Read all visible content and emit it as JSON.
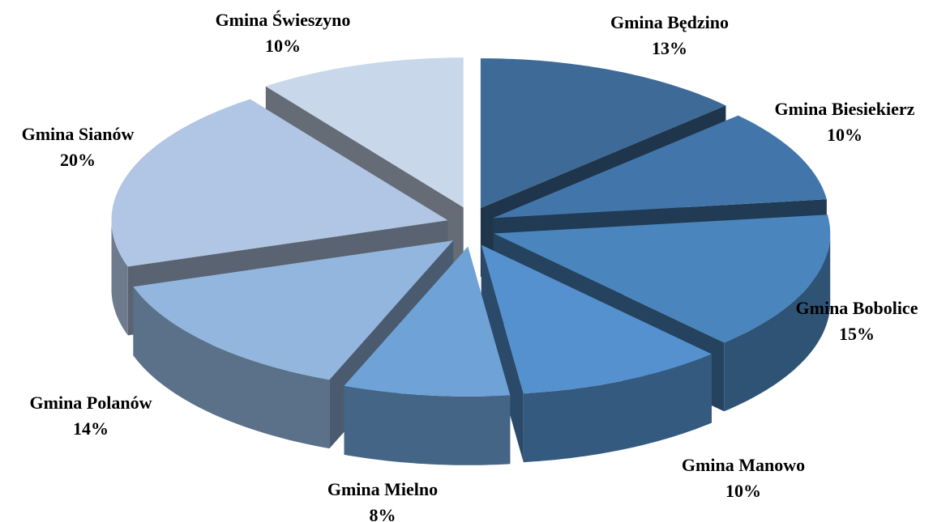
{
  "chart_data": {
    "type": "pie3d",
    "categories": [
      "Gmina Będzino",
      "Gmina Biesiekierz",
      "Gmina Bobolice",
      "Gmina Manowo",
      "Gmina Mielno",
      "Gmina Polanów",
      "Gmina Sianów",
      "Gmina Świeszyno"
    ],
    "values": [
      13,
      10,
      15,
      10,
      8,
      14,
      20,
      10
    ],
    "value_labels": [
      "13%",
      "10%",
      "15%",
      "10%",
      "8%",
      "14%",
      "20%",
      "10%"
    ],
    "colors": [
      "#3d6a96",
      "#4276aa",
      "#4a86bd",
      "#5591cf",
      "#6fa3d8",
      "#93b6de",
      "#b1c6e4",
      "#c9d7eb"
    ]
  }
}
